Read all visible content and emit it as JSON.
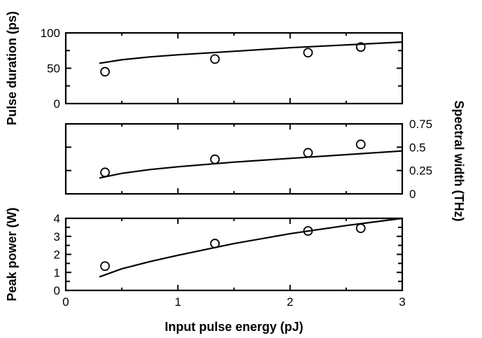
{
  "chart_data": {
    "type": "scatter",
    "xlabel": "Input pulse energy (pJ)",
    "xlim": [
      0,
      3
    ],
    "x_ticks": [
      0,
      1,
      2,
      3
    ],
    "x_tick_labels": [
      "0",
      "1",
      "2",
      "3"
    ],
    "panels": [
      {
        "id": "duration",
        "ylabel": "Pulse duration (ps)",
        "ylabel_side": "left",
        "ylim": [
          0,
          100
        ],
        "y_ticks": [
          0,
          50,
          100
        ],
        "y_tick_labels": [
          "0",
          "50",
          "100"
        ],
        "y_minor_step": 25,
        "series": [
          {
            "kind": "markers",
            "x": [
              0.35,
              1.33,
              2.16,
              2.63
            ],
            "y": [
              45,
              63,
              72,
              80
            ]
          },
          {
            "kind": "line",
            "x": [
              0.3,
              0.5,
              0.75,
              1.0,
              1.5,
              2.0,
              2.5,
              3.0
            ],
            "y": [
              57,
              62,
              66,
              69,
              74,
              79,
              83,
              87
            ]
          }
        ]
      },
      {
        "id": "spectral",
        "ylabel": "Spectral width (THz)",
        "ylabel_side": "right",
        "ylim": [
          0,
          0.75
        ],
        "y_ticks": [
          0,
          0.25,
          0.5,
          0.75
        ],
        "y_tick_labels": [
          "0",
          "0.25",
          "0.5",
          "0.75"
        ],
        "y_minor_step": 0.25,
        "series": [
          {
            "kind": "markers",
            "x": [
              0.35,
              1.33,
              2.16,
              2.63
            ],
            "y": [
              0.23,
              0.37,
              0.44,
              0.53
            ]
          },
          {
            "kind": "line",
            "x": [
              0.3,
              0.5,
              0.75,
              1.0,
              1.5,
              2.0,
              2.5,
              3.0
            ],
            "y": [
              0.17,
              0.22,
              0.26,
              0.29,
              0.34,
              0.38,
              0.42,
              0.46
            ]
          }
        ]
      },
      {
        "id": "peak",
        "ylabel": "Peak power (W)",
        "ylabel_side": "left",
        "ylim": [
          0,
          4
        ],
        "y_ticks": [
          0,
          1,
          2,
          3,
          4
        ],
        "y_tick_labels": [
          "0",
          "1",
          "2",
          "3",
          "4"
        ],
        "y_minor_step": 0.5,
        "series": [
          {
            "kind": "markers",
            "x": [
              0.35,
              1.33,
              2.16,
              2.63
            ],
            "y": [
              1.35,
              2.6,
              3.3,
              3.45
            ]
          },
          {
            "kind": "line",
            "x": [
              0.3,
              0.5,
              0.75,
              1.0,
              1.5,
              2.0,
              2.5,
              3.0
            ],
            "y": [
              0.75,
              1.2,
              1.6,
              1.95,
              2.6,
              3.15,
              3.6,
              4.0
            ]
          }
        ]
      }
    ]
  }
}
